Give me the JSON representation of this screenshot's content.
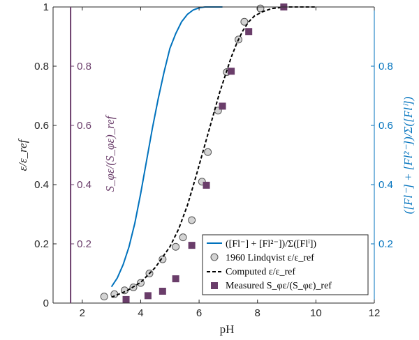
{
  "chart_data": {
    "type": "line",
    "xlabel": "pH",
    "ylabel_left": "ε/ε_ref",
    "ylabel_right": "([Fl⁻] + [Fl²⁻])/Σ([Flⁱ])",
    "ylabel_inner": "S_φε/(S_φε)_ref",
    "xlim": [
      1,
      12
    ],
    "ylim": [
      0,
      1
    ],
    "xticks": [
      "2",
      "4",
      "6",
      "8",
      "10",
      "12"
    ],
    "yticks_left": [
      "0",
      "0.2",
      "0.4",
      "0.6",
      "0.8",
      "1"
    ],
    "yticks_right": [
      "0.2",
      "0.4",
      "0.6",
      "0.8"
    ],
    "yticks_inner": [
      "0.2",
      "0.4",
      "0.6",
      "0.8"
    ],
    "vertical_line_x": 1.6,
    "legend_position": "bottom-right",
    "colors": {
      "blue": "#0072BD",
      "purple": "#6B3E6B",
      "marker_gray": "#D3D3D3",
      "marker_purple": "#6A3D6A",
      "dark": "#262626"
    },
    "series": [
      {
        "name": "([Fl⁻] + [Fl²⁻])/Σ([Flⁱ])",
        "style": "line",
        "color": "#0072BD",
        "x": [
          3.0,
          3.2,
          3.4,
          3.6,
          3.8,
          4.0,
          4.2,
          4.4,
          4.6,
          4.8,
          5.0,
          5.2,
          5.4,
          5.6,
          5.8,
          6.0,
          6.2,
          6.4,
          6.6,
          6.8
        ],
        "y": [
          0.055,
          0.085,
          0.13,
          0.19,
          0.27,
          0.37,
          0.48,
          0.59,
          0.69,
          0.78,
          0.86,
          0.91,
          0.95,
          0.975,
          0.99,
          0.997,
          1.0,
          1.0,
          1.0,
          1.0
        ]
      },
      {
        "name": "1960 Lindqvist ε/ε_ref",
        "style": "circle",
        "color": "#D3D3D3",
        "x": [
          2.75,
          3.1,
          3.45,
          3.75,
          4.0,
          4.3,
          4.75,
          5.2,
          5.45,
          5.75,
          6.1,
          6.3,
          6.65,
          6.95,
          7.35,
          7.55,
          8.1
        ],
        "y": [
          0.022,
          0.03,
          0.043,
          0.053,
          0.068,
          0.1,
          0.148,
          0.19,
          0.222,
          0.28,
          0.41,
          0.51,
          0.65,
          0.78,
          0.89,
          0.95,
          0.995
        ]
      },
      {
        "name": "Computed ε/ε_ref",
        "style": "dashed",
        "color": "#000000",
        "x": [
          3.0,
          3.5,
          4.0,
          4.5,
          5.0,
          5.3,
          5.6,
          5.9,
          6.1,
          6.3,
          6.5,
          6.7,
          6.9,
          7.1,
          7.3,
          7.5,
          7.7,
          7.9,
          8.2,
          8.5,
          9.0,
          9.5,
          10.0
        ],
        "y": [
          0.02,
          0.04,
          0.07,
          0.12,
          0.19,
          0.25,
          0.33,
          0.43,
          0.5,
          0.57,
          0.64,
          0.71,
          0.77,
          0.83,
          0.88,
          0.92,
          0.95,
          0.97,
          0.985,
          0.995,
          1.0,
          1.0,
          1.0
        ]
      },
      {
        "name": "Measured S_φε/(S_φε)_ref",
        "style": "square",
        "color": "#6A3D6A",
        "x": [
          3.5,
          4.25,
          4.75,
          5.2,
          5.75,
          6.25,
          6.8,
          7.1,
          7.7,
          8.9
        ],
        "y": [
          0.012,
          0.025,
          0.04,
          0.082,
          0.195,
          0.398,
          0.665,
          0.783,
          0.917,
          1.0
        ]
      }
    ]
  }
}
